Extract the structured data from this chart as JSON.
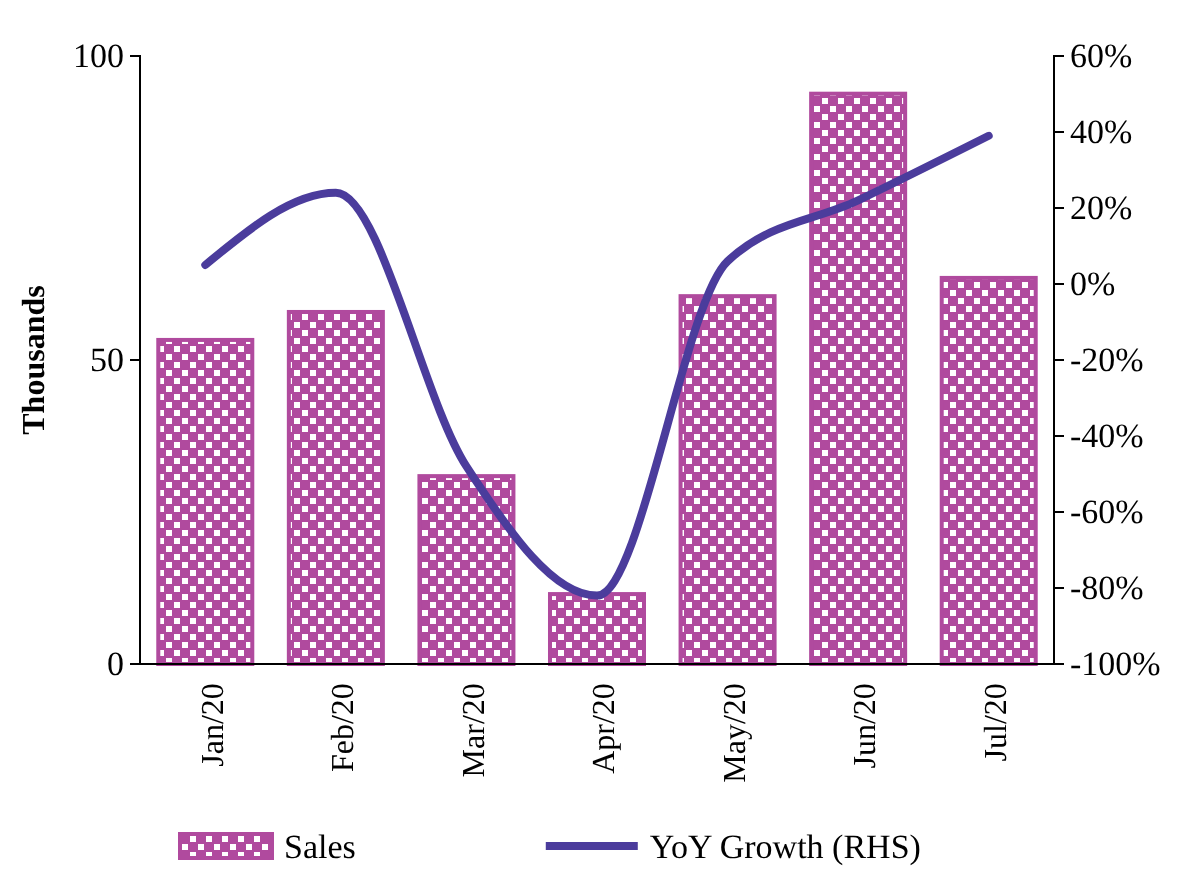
{
  "chart_data": {
    "type": "bar",
    "ylabel": "Thousands",
    "categories": [
      "Jan/20",
      "Feb/20",
      "Mar/20",
      "Apr/20",
      "May/20",
      "Jun/20",
      "Jul/20"
    ],
    "series": [
      {
        "name": "Sales",
        "color": "#b04a9e",
        "values": [
          53.3,
          57.9,
          30.9,
          11.5,
          60.5,
          93.8,
          63.5
        ]
      },
      {
        "name": "YoY Growth (RHS)",
        "type": "line",
        "axis": "y2",
        "color": "#4b3c9c",
        "values": [
          5,
          24,
          -48,
          -82,
          6,
          22,
          39
        ]
      }
    ],
    "ylim": [
      0,
      100
    ],
    "yticks": [
      0,
      50,
      100
    ],
    "y2lim": [
      -100,
      60
    ],
    "y2ticks": [
      {
        "value": -100,
        "label": "-100%"
      },
      {
        "value": -80,
        "label": "-80%"
      },
      {
        "value": -60,
        "label": "-60%"
      },
      {
        "value": -40,
        "label": "-40%"
      },
      {
        "value": -20,
        "label": "-20%"
      },
      {
        "value": 0,
        "label": "0%"
      },
      {
        "value": 20,
        "label": "20%"
      },
      {
        "value": 40,
        "label": "40%"
      },
      {
        "value": 60,
        "label": "60%"
      }
    ],
    "legend": "bottom",
    "grid": false,
    "line_style": "solid",
    "marker": "none"
  }
}
